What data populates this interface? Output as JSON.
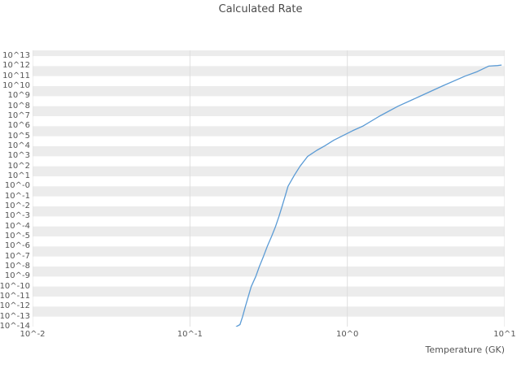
{
  "chart": {
    "title": "Calculated Rate",
    "xlabel": "Temperature (GK)",
    "colors": {
      "line": "#5b9bd5",
      "band": "#ececec",
      "grid": "#dedede",
      "text": "#555555",
      "background": "#ffffff"
    },
    "xlim_log10": [
      -2,
      1
    ],
    "ylim_log10": [
      -14,
      13.57
    ],
    "x_ticks": [
      {
        "label": "10^-2",
        "log10": -2
      },
      {
        "label": "10^-1",
        "log10": -1
      },
      {
        "label": "10^0",
        "log10": 0
      },
      {
        "label": "10^1",
        "log10": 1
      }
    ],
    "y_ticks": [
      {
        "label": "10^13",
        "log10": 13
      },
      {
        "label": "10^12",
        "log10": 12
      },
      {
        "label": "10^11",
        "log10": 11
      },
      {
        "label": "10^10",
        "log10": 10
      },
      {
        "label": "10^9",
        "log10": 9
      },
      {
        "label": "10^8",
        "log10": 8
      },
      {
        "label": "10^7",
        "log10": 7
      },
      {
        "label": "10^6",
        "log10": 6
      },
      {
        "label": "10^5",
        "log10": 5
      },
      {
        "label": "10^4",
        "log10": 4
      },
      {
        "label": "10^3",
        "log10": 3
      },
      {
        "label": "10^2",
        "log10": 2
      },
      {
        "label": "10^1",
        "log10": 1
      },
      {
        "label": "10^-0",
        "log10": 0
      },
      {
        "label": "10^-1",
        "log10": -1
      },
      {
        "label": "10^-2",
        "log10": -2
      },
      {
        "label": "10^-3",
        "log10": -3
      },
      {
        "label": "10^-4",
        "log10": -4
      },
      {
        "label": "10^-5",
        "log10": -5
      },
      {
        "label": "10^-6",
        "log10": -6
      },
      {
        "label": "10^-7",
        "log10": -7
      },
      {
        "label": "10^-8",
        "log10": -8
      },
      {
        "label": "10^-9",
        "log10": -9
      },
      {
        "label": "10^-10",
        "log10": -10
      },
      {
        "label": "10^-11",
        "log10": -11
      },
      {
        "label": "10^-12",
        "log10": -12
      },
      {
        "label": "10^-13",
        "log10": -13
      },
      {
        "label": "10^-14",
        "log10": -14
      }
    ]
  },
  "chart_data": {
    "type": "line",
    "title": "Calculated Rate",
    "xlabel": "Temperature (GK)",
    "ylabel": "",
    "xscale": "log",
    "yscale": "log",
    "xlim": [
      0.01,
      10
    ],
    "ylim": [
      1e-14,
      37000000000000.0
    ],
    "grid": true,
    "legend": false,
    "series": [
      {
        "name": "Calculated Rate",
        "color": "#5b9bd5",
        "x_temperature_GK": [
          0.197,
          0.208,
          0.216,
          0.225,
          0.245,
          0.262,
          0.276,
          0.293,
          0.31,
          0.33,
          0.35,
          0.368,
          0.385,
          0.402,
          0.42,
          0.46,
          0.5,
          0.56,
          0.64,
          0.72,
          0.82,
          0.92,
          1.08,
          1.25,
          1.6,
          2.1,
          2.9,
          4.0,
          5.6,
          6.7,
          7.9,
          9.0,
          9.5
        ],
        "y_rate_log10": [
          -14.0,
          -13.8,
          -13.0,
          -12.0,
          -10.0,
          -9.0,
          -8.0,
          -7.0,
          -6.0,
          -5.0,
          -4.0,
          -3.0,
          -2.0,
          -1.0,
          0.0,
          1.1,
          2.0,
          3.0,
          3.6,
          4.05,
          4.6,
          5.0,
          5.55,
          6.0,
          7.0,
          8.0,
          9.0,
          10.0,
          11.0,
          11.45,
          12.0,
          12.05,
          12.1
        ]
      }
    ]
  }
}
